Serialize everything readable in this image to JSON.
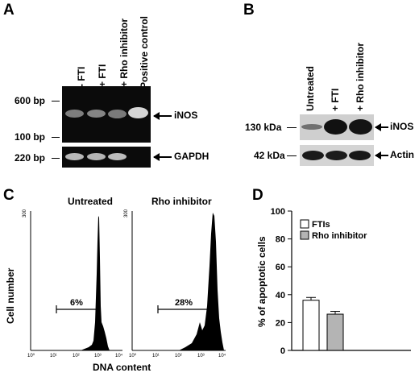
{
  "panel_a": {
    "letter": "A",
    "lanes": [
      "- FTI",
      "+ FTI",
      "+ Rho inhibitor",
      "Positive control"
    ],
    "size_600": "600 bp",
    "size_100": "100 bp",
    "size_220": "220 bp",
    "label_inos": "iNOS",
    "label_gapdh": "GAPDH"
  },
  "panel_b": {
    "letter": "B",
    "lanes": [
      "Untreated",
      "+ FTI",
      "+ Rho inhibitor"
    ],
    "size_130": "130 kDa",
    "size_42": "42 kDa",
    "label_inos": "iNOS",
    "label_actin": "Actin"
  },
  "panel_c": {
    "letter": "C",
    "title_left": "Untreated",
    "title_right": "Rho inhibitor",
    "pct_left": "6%",
    "pct_right": "28%",
    "ylabel": "Cell number",
    "xlabel": "DNA content",
    "x_ticks": [
      "10⁰",
      "10¹",
      "10²",
      "10³",
      "10⁴"
    ],
    "y_max": "300"
  },
  "panel_d": {
    "letter": "D",
    "ylabel": "% of apoptotic cells",
    "legend_ftis": "FTIs",
    "legend_rho": "Rho inhibitor"
  },
  "chart_data": {
    "type": "bar",
    "categories": [
      "FTIs",
      "Rho inhibitor"
    ],
    "series": [
      {
        "name": "% of apoptotic cells",
        "values": [
          36,
          26
        ]
      }
    ],
    "errors": [
      2,
      2
    ],
    "ylabel": "% of apoptotic cells",
    "ylim": [
      0,
      100
    ],
    "yticks": [
      0,
      20,
      40,
      60,
      80,
      100
    ],
    "colors": [
      "#ffffff",
      "#b4b4b4"
    ],
    "legend": "top-left"
  }
}
